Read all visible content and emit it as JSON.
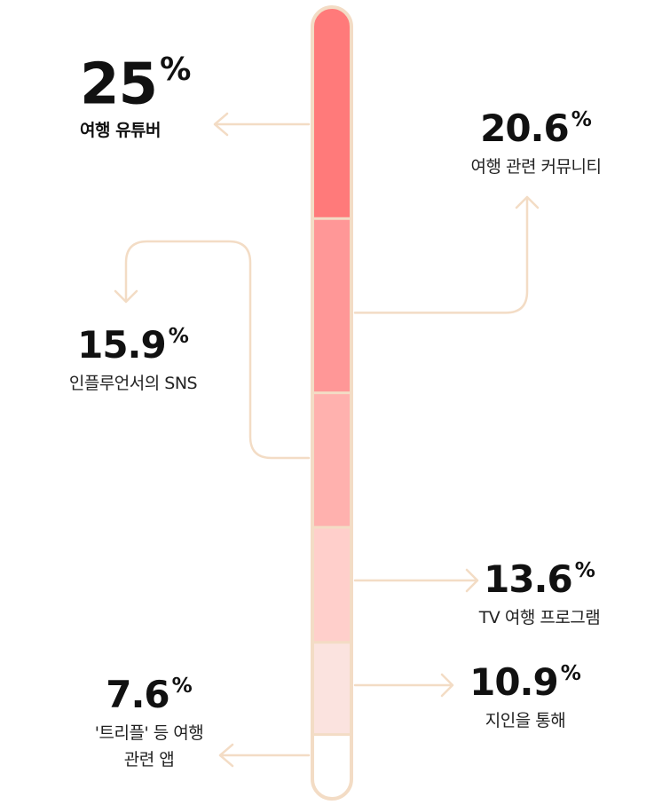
{
  "chart_data": {
    "type": "bar",
    "stacked": true,
    "unit": "%",
    "segments": [
      {
        "label": "여행 유튜버",
        "value": 25,
        "value_text": "25",
        "color": "#ff7a7a"
      },
      {
        "label": "여행 관련 커뮤니티",
        "value": 20.6,
        "value_text": "20.6",
        "color": "#ff9797"
      },
      {
        "label": "인플루언서의 SNS",
        "value": 15.9,
        "value_text": "15.9",
        "color": "#ffb1ae"
      },
      {
        "label": "TV 여행 프로그램",
        "value": 13.6,
        "value_text": "13.6",
        "color": "#ffcfcb"
      },
      {
        "label": "지인을 통해",
        "value": 10.9,
        "value_text": "10.9",
        "color": "#fbe3df"
      },
      {
        "label": "'트리플' 등 여행 관련 앱",
        "label_lines": [
          "'트리플' 등 여행",
          "관련 앱"
        ],
        "value": 7.6,
        "value_text": "7.6",
        "color": "#ffffff"
      }
    ],
    "border_color": "#f3dcc5",
    "arrow_color": "#f3dcc5"
  }
}
